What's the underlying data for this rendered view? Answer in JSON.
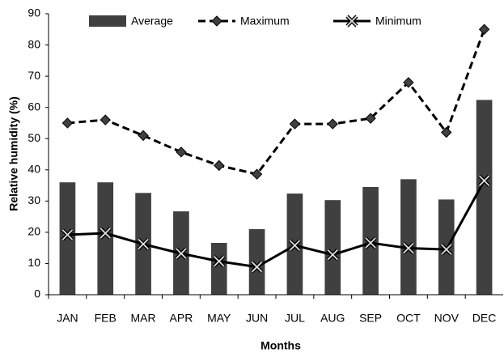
{
  "chart_data": {
    "type": "bar",
    "x_label": "Months",
    "y_label": "Relative humidity (%)",
    "categories": [
      "JAN",
      "FEB",
      "MAR",
      "APR",
      "MAY",
      "JUN",
      "JUL",
      "AUG",
      "SEP",
      "OCT",
      "NOV",
      "DEC"
    ],
    "series": [
      {
        "name": "Average",
        "type": "bar",
        "color": "#404040",
        "values": [
          36,
          36,
          32.6,
          26.7,
          16.6,
          21,
          32.4,
          30.3,
          34.5,
          37,
          30.5,
          62.4
        ]
      },
      {
        "name": "Maximum",
        "type": "line",
        "line_style": "dashed",
        "marker": "diamond",
        "color": "#000000",
        "values": [
          55,
          56,
          51,
          45.7,
          41.4,
          38.6,
          54.7,
          54.7,
          56.5,
          68,
          52,
          85
        ]
      },
      {
        "name": "Minimum",
        "type": "line",
        "line_style": "solid",
        "marker": "x",
        "color": "#000000",
        "values": [
          19.2,
          19.7,
          16.2,
          13.2,
          10.7,
          8.9,
          15.8,
          12.8,
          16.6,
          14.9,
          14.5,
          36.5
        ]
      }
    ],
    "ylim": [
      0,
      90
    ],
    "yticks": [
      0,
      10,
      20,
      30,
      40,
      50,
      60,
      70,
      80,
      90
    ],
    "legend": "top",
    "grid": false
  }
}
